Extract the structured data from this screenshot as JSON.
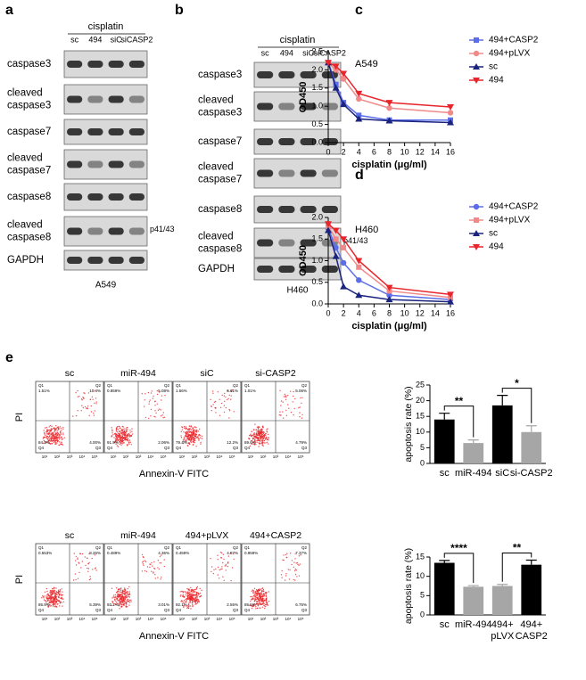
{
  "panel_letters": [
    "a",
    "b",
    "c",
    "d",
    "e"
  ],
  "blots": [
    {
      "cell": "A549",
      "treatment": "cisplatin",
      "lanes": [
        "sc",
        "494",
        "siC",
        "siCASP2"
      ],
      "rows": [
        [
          "caspase3"
        ],
        [
          "cleaved",
          "caspase3"
        ],
        [
          "caspase7"
        ],
        [
          "cleaved",
          "caspase7"
        ],
        [
          "caspase8"
        ],
        [
          "cleaved",
          "caspase8"
        ],
        [
          "GAPDH"
        ]
      ],
      "side_label": "p41/43"
    },
    {
      "cell": "H460",
      "treatment": "cisplatin",
      "lanes": [
        "sc",
        "494",
        "siC",
        "siCASP2"
      ],
      "rows": [
        [
          "caspase3"
        ],
        [
          "cleaved",
          "caspase3"
        ],
        [
          "caspase7"
        ],
        [
          "cleaved",
          "caspase7"
        ],
        [
          "caspase8"
        ],
        [
          "cleaved",
          "caspase8"
        ],
        [
          "GAPDH"
        ]
      ],
      "side_label": "p41/43"
    }
  ],
  "flow": {
    "y_label": "PI",
    "x_label": "Annexin-V FITC",
    "quadrant_names": [
      "Q1",
      "Q2",
      "Q3",
      "Q4"
    ],
    "tick_labels": [
      "10¹",
      "10²",
      "10³",
      "10⁴",
      "10⁵"
    ],
    "rows": [
      [
        {
          "label": "sc",
          "q1": "1.51%",
          "q2": "10.4%",
          "q3": "4.00%",
          "q4": "84.1%"
        },
        {
          "label": "miR-494",
          "q1": "0.859%",
          "q2": "5.08%",
          "q3": "2.06%",
          "q4": "91.9%"
        },
        {
          "label": "siC",
          "q1": "1.56%",
          "q2": "6.61%",
          "q3": "12.2%",
          "q4": "79.4%"
        },
        {
          "label": "si-CASP2",
          "q1": "1.01%",
          "q2": "5.06%",
          "q3": "4.79%",
          "q4": "89.6%"
        }
      ],
      [
        {
          "label": "sc",
          "q1": "0.553%",
          "q2": "8.26%",
          "q3": "5.39%",
          "q4": "85.9%"
        },
        {
          "label": "miR-494",
          "q1": "0.489%",
          "q2": "4.36%",
          "q3": "3.01%",
          "q4": "92.1%"
        },
        {
          "label": "494+pLVX",
          "q1": "0.459%",
          "q2": "4.97%",
          "q3": "2.55%",
          "q4": "92.1%"
        },
        {
          "label": "494+CASP2",
          "q1": "0.959%",
          "q2": "7.37%",
          "q3": "6.75%",
          "q4": "85.5%"
        }
      ]
    ]
  },
  "chart_data": [
    {
      "type": "line",
      "title": "A549",
      "x_label": "cisplatin (μg/ml)",
      "y_label": "OD450",
      "x": [
        0,
        1,
        2,
        4,
        8,
        16
      ],
      "xlim": [
        0,
        16
      ],
      "xticks": [
        0,
        2,
        4,
        6,
        8,
        10,
        12,
        14,
        16
      ],
      "ylim": [
        0,
        2.5
      ],
      "yticks": [
        {
          "value": 0,
          "label": "0.0"
        },
        {
          "value": 0.5,
          "label": "0.5"
        },
        {
          "value": 1,
          "label": "1.0"
        },
        {
          "value": 1.5,
          "label": "1.5"
        },
        {
          "value": 2,
          "label": "2.0"
        },
        {
          "value": 2.5,
          "label": "2.5"
        }
      ],
      "series": [
        {
          "name": "494+CASP2",
          "color": "#5b6ee8",
          "marker": "square",
          "values": [
            2.2,
            1.6,
            1.1,
            0.75,
            0.62,
            0.62
          ]
        },
        {
          "name": "494+pLVX",
          "color": "#f08a8a",
          "marker": "circle",
          "values": [
            2.2,
            2.0,
            1.75,
            1.2,
            0.95,
            0.82
          ]
        },
        {
          "name": "sc",
          "color": "#1a237e",
          "marker": "triangle-up",
          "values": [
            2.2,
            1.5,
            1.05,
            0.65,
            0.6,
            0.55
          ]
        },
        {
          "name": "494",
          "color": "#e8252b",
          "marker": "triangle-down",
          "values": [
            2.2,
            2.1,
            1.9,
            1.35,
            1.1,
            0.98
          ]
        }
      ]
    },
    {
      "type": "line",
      "title": "H460",
      "x_label": "cisplatin (μg/ml)",
      "y_label": "OD450",
      "x": [
        0,
        1,
        2,
        4,
        8,
        16
      ],
      "xlim": [
        0,
        16
      ],
      "xticks": [
        0,
        2,
        4,
        6,
        8,
        10,
        12,
        14,
        16
      ],
      "ylim": [
        0,
        2
      ],
      "yticks": [
        {
          "value": 0,
          "label": "0.0"
        },
        {
          "value": 0.5,
          "label": "0.5"
        },
        {
          "value": 1,
          "label": "1.0"
        },
        {
          "value": 1.5,
          "label": "1.5"
        },
        {
          "value": 2,
          "label": "2.0"
        }
      ],
      "series": [
        {
          "name": "494+CASP2",
          "color": "#5b6ee8",
          "marker": "circle",
          "values": [
            1.75,
            1.3,
            0.95,
            0.55,
            0.2,
            0.1
          ]
        },
        {
          "name": "494+pLVX",
          "color": "#f08a8a",
          "marker": "square",
          "values": [
            1.8,
            1.5,
            1.3,
            0.85,
            0.3,
            0.15
          ]
        },
        {
          "name": "sc",
          "color": "#1a237e",
          "marker": "triangle-up",
          "values": [
            1.7,
            1.1,
            0.4,
            0.2,
            0.1,
            0.05
          ]
        },
        {
          "name": "494",
          "color": "#e8252b",
          "marker": "triangle-down",
          "values": [
            1.85,
            1.7,
            1.5,
            1.0,
            0.38,
            0.22
          ]
        }
      ]
    },
    {
      "type": "bar",
      "y_label": "apoptosis rate (%)",
      "categories": [
        "sc",
        "miR-494",
        "siC",
        "si-CASP2"
      ],
      "values": [
        14,
        6.5,
        18.5,
        10
      ],
      "errors": [
        2,
        1,
        3.2,
        2
      ],
      "colors": [
        "#000000",
        "#a6a6a6",
        "#000000",
        "#a6a6a6"
      ],
      "ylim": [
        0,
        25
      ],
      "yticks": [
        0,
        5,
        10,
        15,
        20,
        25
      ],
      "annotations": [
        {
          "text": "**",
          "from": 0,
          "to": 1
        },
        {
          "text": "*",
          "from": 2,
          "to": 3
        }
      ]
    },
    {
      "type": "bar",
      "y_label": "apoptosis rate (%)",
      "categories": [
        "sc",
        "miR-494",
        "494+pLVX",
        "494+CASP2"
      ],
      "values": [
        13.5,
        7.3,
        7.5,
        13.0
      ],
      "errors": [
        0.6,
        0.3,
        0.4,
        1.2
      ],
      "colors": [
        "#000000",
        "#a6a6a6",
        "#a6a6a6",
        "#000000"
      ],
      "ylim": [
        0,
        15
      ],
      "yticks": [
        0,
        5,
        10,
        15
      ],
      "annotations": [
        {
          "text": "****",
          "from": 0,
          "to": 1
        },
        {
          "text": "**",
          "from": 2,
          "to": 3
        }
      ]
    }
  ]
}
